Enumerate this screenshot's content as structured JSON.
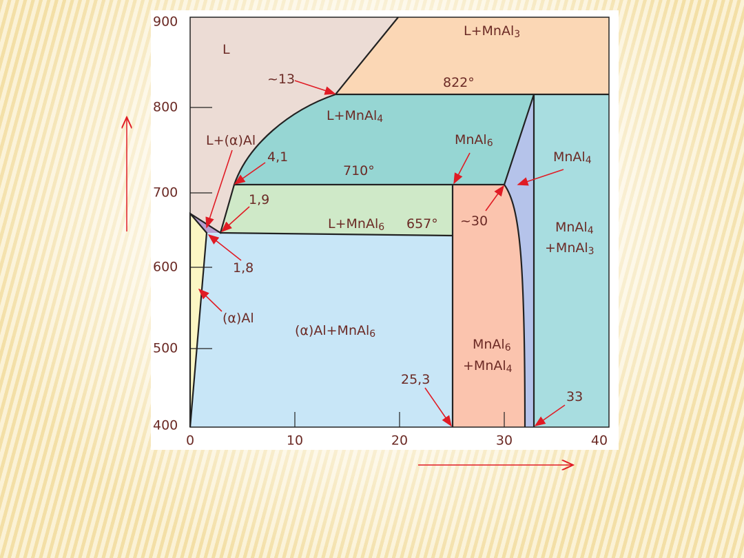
{
  "axes": {
    "x_ticks": [
      "0",
      "10",
      "20",
      "30",
      "40"
    ],
    "y_ticks": [
      "400",
      "500",
      "600",
      "700",
      "800",
      "900"
    ]
  },
  "labels": [
    {
      "text": "L"
    },
    {
      "text": "L+MnAl",
      "sub": "3"
    },
    {
      "text": "822°"
    },
    {
      "text": "~13"
    },
    {
      "text": "L+MnAl",
      "sub": "4"
    },
    {
      "text": "L+(α)Al"
    },
    {
      "text": "4,1"
    },
    {
      "text": "710°"
    },
    {
      "text": "MnAl",
      "sub": "6"
    },
    {
      "text": "MnAl",
      "sub": "4"
    },
    {
      "text": "1,9"
    },
    {
      "text": "L+MnAl",
      "sub": "6"
    },
    {
      "text": "657°"
    },
    {
      "text": "~30"
    },
    {
      "lines": [
        {
          "text": "MnAl",
          "sub": "4"
        },
        {
          "text": "+MnAl",
          "sub": "3"
        }
      ]
    },
    {
      "text": "1,8"
    },
    {
      "text": "(α)Al"
    },
    {
      "text": "(α)Al+MnAl",
      "sub": "6"
    },
    {
      "lines": [
        {
          "text": "MnAl",
          "sub": "6"
        },
        {
          "text": "+MnAl",
          "sub": "4"
        }
      ]
    },
    {
      "text": "25,3"
    },
    {
      "text": "33"
    }
  ]
}
